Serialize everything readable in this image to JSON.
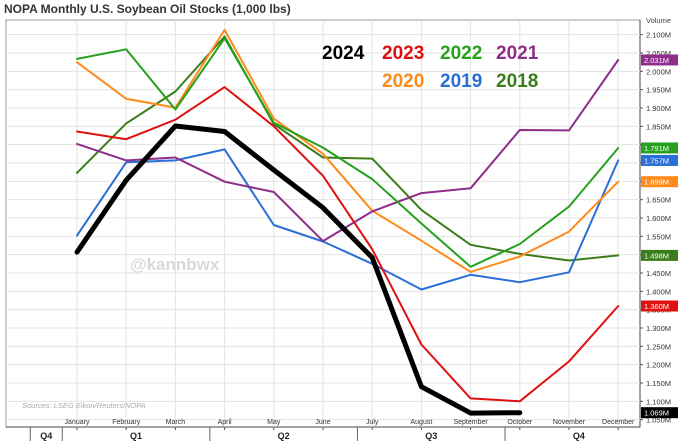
{
  "chart_data": {
    "type": "line",
    "title": "NOPA Monthly U.S. Soybean Oil Stocks (1,000 lbs)",
    "ylabel": "Volume",
    "source": "Sources: LSEG Eikon/Reuters/NOPA",
    "watermark": "@kannbwx",
    "ylim": [
      1030000,
      2140000
    ],
    "yticks": [
      {
        "value": 1050000,
        "label": "1.050M"
      },
      {
        "value": 1100000,
        "label": "1.100M"
      },
      {
        "value": 1150000,
        "label": "1.150M"
      },
      {
        "value": 1200000,
        "label": "1.200M"
      },
      {
        "value": 1250000,
        "label": "1.250M"
      },
      {
        "value": 1300000,
        "label": "1.300M"
      },
      {
        "value": 1350000,
        "label": "1.350M"
      },
      {
        "value": 1400000,
        "label": "1.400M"
      },
      {
        "value": 1450000,
        "label": "1.450M"
      },
      {
        "value": 1500000,
        "label": "1.500M"
      },
      {
        "value": 1550000,
        "label": "1.550M"
      },
      {
        "value": 1600000,
        "label": "1.600M"
      },
      {
        "value": 1650000,
        "label": "1.650M"
      },
      {
        "value": 1700000,
        "label": "1.700M"
      },
      {
        "value": 1750000,
        "label": "1.750M"
      },
      {
        "value": 1800000,
        "label": "1.800M"
      },
      {
        "value": 1850000,
        "label": "1.850M"
      },
      {
        "value": 1900000,
        "label": "1.900M"
      },
      {
        "value": 1950000,
        "label": "1.950M"
      },
      {
        "value": 2000000,
        "label": "2.000M"
      },
      {
        "value": 2050000,
        "label": "2.050M"
      },
      {
        "value": 2100000,
        "label": "2.100M"
      }
    ],
    "categories": [
      "January",
      "February",
      "March",
      "April",
      "May",
      "June",
      "July",
      "August",
      "September",
      "October",
      "November",
      "December"
    ],
    "quarters": [
      {
        "label": "Q4",
        "start": -0.95,
        "end": -0.3
      },
      {
        "label": "Q1",
        "start": -0.3,
        "end": 2.7
      },
      {
        "label": "Q2",
        "start": 2.7,
        "end": 5.7
      },
      {
        "label": "Q3",
        "start": 5.7,
        "end": 8.7
      },
      {
        "label": "Q4",
        "start": 8.7,
        "end": 11.7
      }
    ],
    "series": [
      {
        "name": "2018",
        "color": "#3a7d1a",
        "values": [
          1723000,
          1858000,
          1945000,
          2095000,
          1856000,
          1765000,
          1762000,
          1622000,
          1527000,
          1502000,
          1484000,
          1498000
        ],
        "last_label": "1.498M"
      },
      {
        "name": "2019",
        "color": "#2a6fd6",
        "values": [
          1552000,
          1752000,
          1757000,
          1787000,
          1581000,
          1536000,
          1475000,
          1405000,
          1445000,
          1425000,
          1452000,
          1757000
        ],
        "last_label": "1.757M"
      },
      {
        "name": "2020",
        "color": "#ff8a1a",
        "values": [
          2025000,
          1925000,
          1901000,
          2113000,
          1871000,
          1775000,
          1620000,
          1538000,
          1453000,
          1495000,
          1563000,
          1699000
        ],
        "last_label": "1.699M"
      },
      {
        "name": "2021",
        "color": "#8e2d8a",
        "values": [
          1802000,
          1757000,
          1765000,
          1699000,
          1671000,
          1537000,
          1618000,
          1668000,
          1681000,
          1840000,
          1839000,
          2031000
        ],
        "last_label": "2.031M"
      },
      {
        "name": "2022",
        "color": "#25a11e",
        "values": [
          2034000,
          2060000,
          1896000,
          2090000,
          1860000,
          1792000,
          1706000,
          1585000,
          1467000,
          1529000,
          1631000,
          1791000
        ],
        "last_label": "1.791M"
      },
      {
        "name": "2023",
        "color": "#e01010",
        "values": [
          1836000,
          1815000,
          1868000,
          1957000,
          1850000,
          1715000,
          1515000,
          1255000,
          1108000,
          1100000,
          1209000,
          1360000
        ],
        "last_label": "1.360M"
      },
      {
        "name": "2024",
        "color": "#000000",
        "values": [
          1507000,
          1703000,
          1851000,
          1836000,
          1731000,
          1628000,
          1492000,
          1140000,
          1068000,
          1069000,
          null,
          null
        ],
        "last_label": "1.069M"
      }
    ],
    "legend": {
      "row1": [
        {
          "name": "2024",
          "color": "#000000"
        },
        {
          "name": "2023",
          "color": "#e01010"
        },
        {
          "name": "2022",
          "color": "#25a11e"
        },
        {
          "name": "2021",
          "color": "#8e2d8a"
        }
      ],
      "row2": [
        {
          "name": "2020",
          "color": "#ff8a1a"
        },
        {
          "name": "2019",
          "color": "#2a6fd6"
        },
        {
          "name": "2018",
          "color": "#3a7d1a"
        }
      ]
    }
  }
}
